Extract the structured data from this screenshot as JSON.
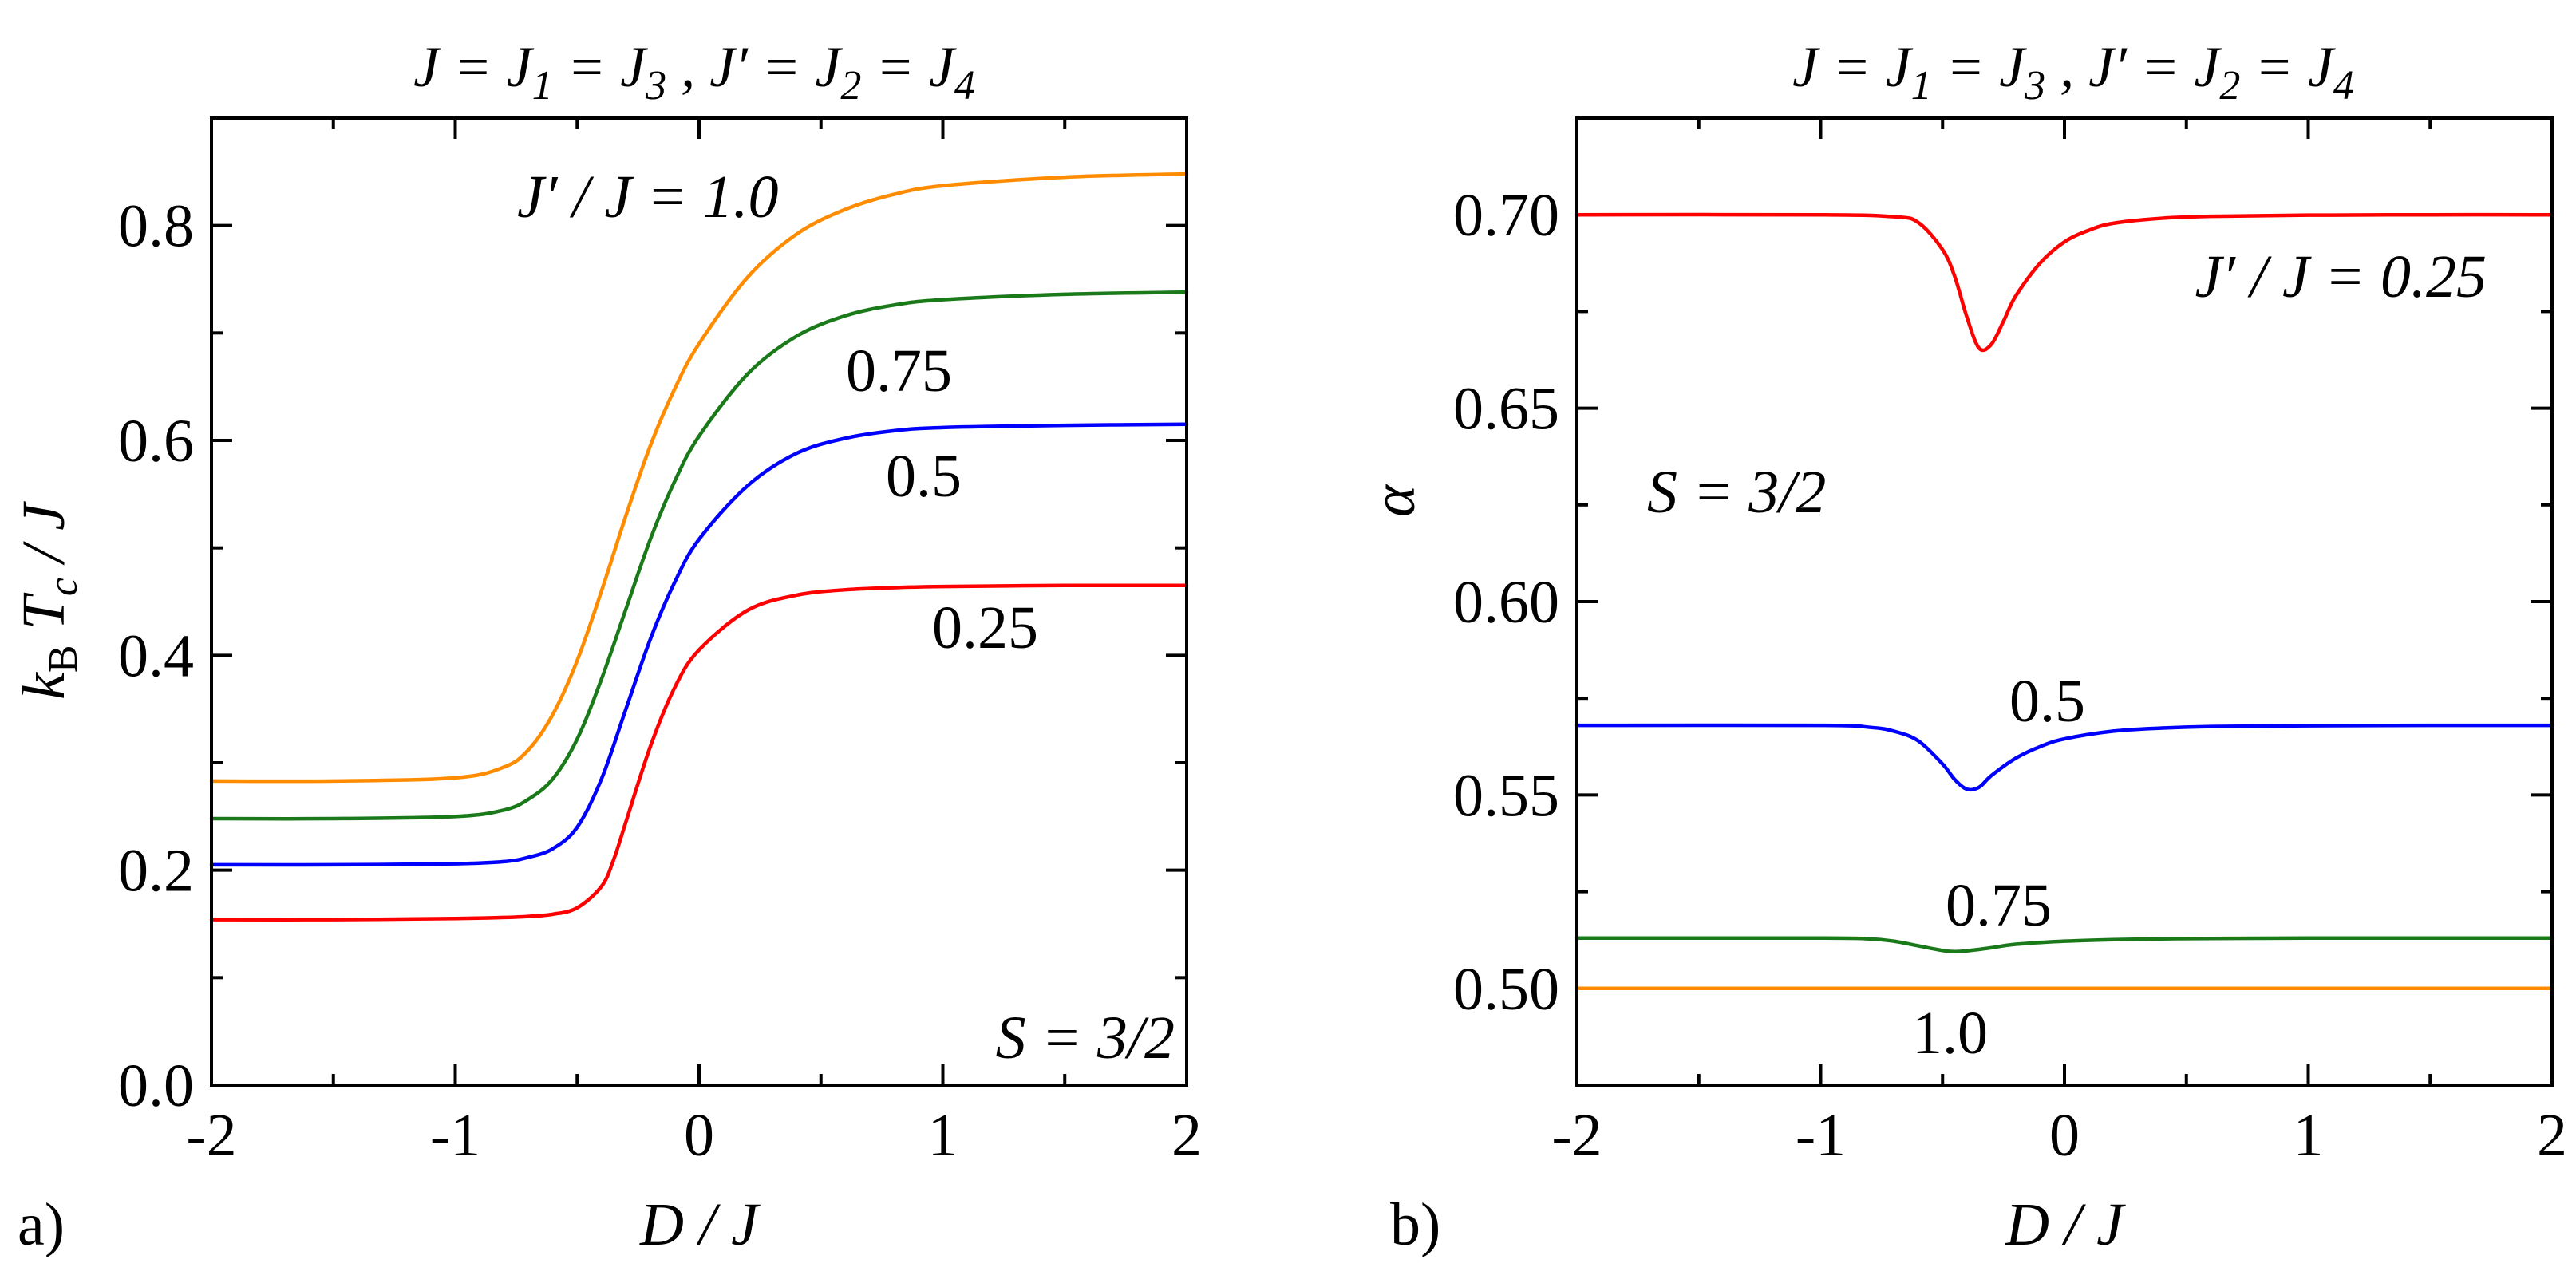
{
  "figure": {
    "panel_labels": [
      "a)",
      "b)"
    ]
  },
  "chart_data": [
    {
      "type": "line",
      "panel": "a)",
      "title": "J = J1 = J3 , J′ = J2 = J4",
      "title_parts": {
        "a": "J = J",
        "b": "1",
        "c": " = J",
        "d": "3",
        "e": " , J′ = J",
        "f": "2",
        "g": " = J",
        "h": "4"
      },
      "xlabel": "D / J",
      "ylabel": "kB Tc / J",
      "ylabel_parts": {
        "k": "k",
        "B": "B",
        "T": " T",
        "c": "c",
        "rest": " / J"
      },
      "xlim": [
        -2,
        2
      ],
      "ylim": [
        0.0,
        0.9
      ],
      "xticks": [
        -2,
        -1,
        0,
        1,
        2
      ],
      "xtick_labels": [
        "-2",
        "-1",
        "0",
        "1",
        "2"
      ],
      "yticks": [
        0.0,
        0.2,
        0.4,
        0.6,
        0.8
      ],
      "ytick_labels": [
        "0.0",
        "0.2",
        "0.4",
        "0.6",
        "0.8"
      ],
      "annotation": "S = 3/2",
      "series": [
        {
          "name": "J′ / J = 1.0",
          "label": "J′ / J = 1.0",
          "color": "#ff8c00",
          "x": [
            -2,
            -1.5,
            -1.0,
            -0.8,
            -0.7,
            -0.6,
            -0.5,
            -0.4,
            -0.3,
            -0.2,
            -0.1,
            0.0,
            0.2,
            0.4,
            0.6,
            0.8,
            1.0,
            1.5,
            2.0
          ],
          "y": [
            0.283,
            0.283,
            0.286,
            0.296,
            0.312,
            0.345,
            0.395,
            0.46,
            0.53,
            0.595,
            0.648,
            0.69,
            0.752,
            0.792,
            0.815,
            0.829,
            0.837,
            0.845,
            0.848
          ]
        },
        {
          "name": "0.75",
          "label": "0.75",
          "color": "#1a7a1a",
          "x": [
            -2,
            -1.5,
            -1.0,
            -0.8,
            -0.7,
            -0.6,
            -0.5,
            -0.4,
            -0.3,
            -0.2,
            -0.1,
            0.0,
            0.2,
            0.4,
            0.6,
            0.8,
            1.0,
            1.5,
            2.0
          ],
          "y": [
            0.248,
            0.248,
            0.25,
            0.256,
            0.266,
            0.285,
            0.322,
            0.378,
            0.443,
            0.508,
            0.562,
            0.604,
            0.662,
            0.697,
            0.716,
            0.726,
            0.731,
            0.736,
            0.738
          ]
        },
        {
          "name": "0.5",
          "label": "0.5",
          "color": "#0000ff",
          "x": [
            -2,
            -1.5,
            -1.0,
            -0.8,
            -0.7,
            -0.6,
            -0.5,
            -0.4,
            -0.3,
            -0.2,
            -0.1,
            0.0,
            0.2,
            0.4,
            0.6,
            0.8,
            1.0,
            1.5,
            2.0
          ],
          "y": [
            0.205,
            0.205,
            0.206,
            0.208,
            0.212,
            0.22,
            0.24,
            0.285,
            0.35,
            0.415,
            0.468,
            0.508,
            0.558,
            0.588,
            0.602,
            0.609,
            0.612,
            0.614,
            0.615
          ]
        },
        {
          "name": "0.25",
          "label": "0.25",
          "color": "#ff0000",
          "x": [
            -2,
            -1.5,
            -1.0,
            -0.8,
            -0.7,
            -0.6,
            -0.5,
            -0.4,
            -0.35,
            -0.3,
            -0.2,
            -0.1,
            0.0,
            0.2,
            0.4,
            0.6,
            0.8,
            1.0,
            1.5,
            2.0
          ],
          "y": [
            0.154,
            0.154,
            0.155,
            0.156,
            0.157,
            0.159,
            0.165,
            0.185,
            0.21,
            0.245,
            0.315,
            0.37,
            0.405,
            0.442,
            0.456,
            0.461,
            0.463,
            0.464,
            0.465,
            0.465
          ]
        }
      ]
    },
    {
      "type": "line",
      "panel": "b)",
      "title": "J = J1 = J3 , J′ = J2 = J4",
      "title_parts": {
        "a": "J = J",
        "b": "1",
        "c": " = J",
        "d": "3",
        "e": " , J′ = J",
        "f": "2",
        "g": " = J",
        "h": "4"
      },
      "xlabel": "D / J",
      "ylabel": "α",
      "xlim": [
        -2,
        2
      ],
      "ylim": [
        0.475,
        0.725
      ],
      "xticks": [
        -2,
        -1,
        0,
        1,
        2
      ],
      "xtick_labels": [
        "-2",
        "-1",
        "0",
        "1",
        "2"
      ],
      "yticks": [
        0.5,
        0.55,
        0.6,
        0.65,
        0.7
      ],
      "ytick_labels": [
        "0.50",
        "0.55",
        "0.60",
        "0.65",
        "0.70"
      ],
      "annotation": "S = 3/2",
      "series": [
        {
          "name": "J′ / J = 0.25",
          "label": "J′ / J = 0.25",
          "color": "#ff0000",
          "x": [
            -2,
            -1.0,
            -0.7,
            -0.6,
            -0.5,
            -0.45,
            -0.4,
            -0.35,
            -0.3,
            -0.25,
            -0.2,
            -0.1,
            0.0,
            0.1,
            0.2,
            0.4,
            0.6,
            1.0,
            1.5,
            2.0
          ],
          "y": [
            0.7,
            0.7,
            0.6995,
            0.698,
            0.691,
            0.684,
            0.6735,
            0.6655,
            0.6665,
            0.6725,
            0.679,
            0.6875,
            0.693,
            0.696,
            0.6978,
            0.6991,
            0.6996,
            0.6999,
            0.7,
            0.7
          ]
        },
        {
          "name": "0.5",
          "label": "0.5",
          "color": "#0000ff",
          "x": [
            -2,
            -1.0,
            -0.8,
            -0.7,
            -0.6,
            -0.5,
            -0.45,
            -0.4,
            -0.35,
            -0.3,
            -0.2,
            -0.1,
            0.0,
            0.2,
            0.4,
            0.6,
            1.0,
            1.5,
            2.0
          ],
          "y": [
            0.568,
            0.568,
            0.5675,
            0.5665,
            0.564,
            0.558,
            0.554,
            0.5515,
            0.552,
            0.555,
            0.5595,
            0.5625,
            0.5645,
            0.5665,
            0.5673,
            0.5677,
            0.5679,
            0.568,
            0.568
          ]
        },
        {
          "name": "0.75",
          "label": "0.75",
          "color": "#1a7a1a",
          "x": [
            -2,
            -1.0,
            -0.8,
            -0.7,
            -0.6,
            -0.5,
            -0.45,
            -0.4,
            -0.3,
            -0.2,
            0.0,
            0.2,
            0.4,
            0.6,
            1.0,
            1.5,
            2.0
          ],
          "y": [
            0.513,
            0.513,
            0.5128,
            0.5122,
            0.511,
            0.5098,
            0.5095,
            0.5097,
            0.5105,
            0.5114,
            0.5122,
            0.5126,
            0.5128,
            0.5129,
            0.513,
            0.513,
            0.513
          ]
        },
        {
          "name": "1.0",
          "label": "1.0",
          "color": "#ff8c00",
          "x": [
            -2,
            2
          ],
          "y": [
            0.5,
            0.5
          ]
        }
      ]
    }
  ]
}
